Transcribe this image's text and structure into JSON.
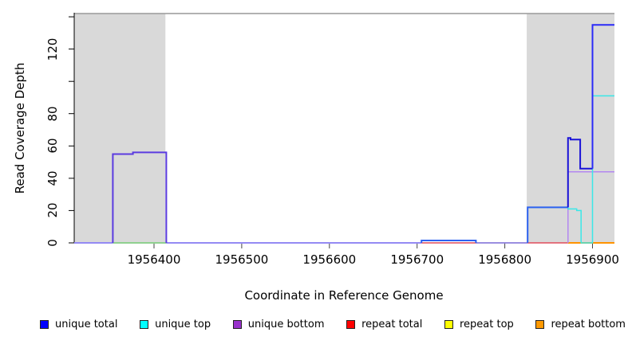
{
  "chart_data": {
    "type": "line",
    "subtype": "step-coverage",
    "title": "",
    "xlabel": "Coordinate in Reference Genome",
    "ylabel": "Read Coverage Depth",
    "x_domain": [
      1956309,
      1956925
    ],
    "y_domain": [
      0,
      142
    ],
    "grid": false,
    "x_ticks": [
      {
        "v": 1956400,
        "label": "1956400"
      },
      {
        "v": 1956500,
        "label": "1956500"
      },
      {
        "v": 1956600,
        "label": "1956600"
      },
      {
        "v": 1956700,
        "label": "1956700"
      },
      {
        "v": 1956800,
        "label": "1956800"
      },
      {
        "v": 1956900,
        "label": "1956900"
      }
    ],
    "y_ticks": [
      {
        "v": 0,
        "label": "0"
      },
      {
        "v": 20,
        "label": "20"
      },
      {
        "v": 40,
        "label": "40"
      },
      {
        "v": 60,
        "label": "60"
      },
      {
        "v": 80,
        "label": "80"
      },
      {
        "v": 100,
        "label": ""
      },
      {
        "v": 120,
        "label": "120"
      },
      {
        "v": 140,
        "label": ""
      }
    ],
    "shade_color": "#d9d9d9",
    "border_color": "#999999",
    "axis_color": "#000000",
    "shaded_regions": [
      {
        "x0": 1956309,
        "x1": 1956413
      },
      {
        "x0": 1956825,
        "x1": 1956925
      }
    ],
    "series": [
      {
        "name": "baseline-unique-zero",
        "color": "#948af4",
        "width": 2,
        "points": [
          [
            1956309,
            0
          ],
          [
            1956705,
            0
          ]
        ]
      },
      {
        "name": "baseline-green-under-left-block",
        "color": "#8fd08f",
        "width": 2,
        "points": [
          [
            1956353,
            0
          ],
          [
            1956414,
            0
          ]
        ]
      },
      {
        "name": "baseline-repeat-total-zero",
        "color": "#e04b5a",
        "width": 1.5,
        "points": [
          [
            1956705,
            0
          ],
          [
            1956872,
            0
          ]
        ]
      },
      {
        "name": "baseline-unique-zero-2",
        "color": "#7f86f2",
        "width": 1.5,
        "points": [
          [
            1956767,
            0
          ],
          [
            1956826,
            0
          ]
        ]
      },
      {
        "name": "baseline-repeat-bottom-zero",
        "color": "#ff9300",
        "width": 2,
        "points": [
          [
            1956872,
            0
          ],
          [
            1956925,
            0
          ]
        ]
      },
      {
        "name": "unique-bottom-right",
        "color": "#b387f0",
        "width": 1.5,
        "points": [
          [
            1956872,
            0
          ],
          [
            1956872,
            44
          ],
          [
            1956925,
            44
          ]
        ]
      },
      {
        "name": "unique-top-right",
        "color": "#3ae8e8",
        "width": 1.5,
        "points": [
          [
            1956826,
            22
          ],
          [
            1956872,
            22
          ],
          [
            1956872,
            21
          ],
          [
            1956882,
            21
          ],
          [
            1956882,
            20
          ],
          [
            1956887,
            20
          ],
          [
            1956887,
            0
          ],
          [
            1956900,
            0
          ],
          [
            1956900,
            91
          ],
          [
            1956925,
            91
          ]
        ]
      },
      {
        "name": "unique-total-left-block",
        "color": "#5b3be0",
        "width": 2,
        "points": [
          [
            1956353,
            0
          ],
          [
            1956353,
            55
          ],
          [
            1956376,
            55
          ],
          [
            1956376,
            56
          ],
          [
            1956414,
            56
          ],
          [
            1956414,
            0
          ]
        ]
      },
      {
        "name": "unique-total-mid-bump",
        "color": "#2d62f0",
        "width": 2,
        "points": [
          [
            1956705,
            0
          ],
          [
            1956705,
            1.5
          ],
          [
            1956767,
            1.5
          ],
          [
            1956767,
            0
          ]
        ]
      },
      {
        "name": "unique-total-step-22",
        "color": "#2d62f0",
        "width": 2,
        "points": [
          [
            1956826,
            0
          ],
          [
            1956826,
            22
          ],
          [
            1956872,
            22
          ]
        ]
      },
      {
        "name": "unique-total-peak-64",
        "color": "#1a13d8",
        "width": 2,
        "points": [
          [
            1956872,
            22
          ],
          [
            1956872,
            65
          ],
          [
            1956875,
            65
          ],
          [
            1956875,
            64
          ],
          [
            1956886,
            64
          ],
          [
            1956886,
            46
          ],
          [
            1956900,
            46
          ]
        ]
      },
      {
        "name": "unique-total-peak-135",
        "color": "#2a2af8",
        "width": 2,
        "points": [
          [
            1956900,
            46
          ],
          [
            1956900,
            135
          ],
          [
            1956925,
            135
          ]
        ]
      }
    ],
    "legend": [
      {
        "label": "unique total",
        "color": "#0000ff"
      },
      {
        "label": "unique top",
        "color": "#00ffff"
      },
      {
        "label": "unique bottom",
        "color": "#9932cc"
      },
      {
        "label": "repeat total",
        "color": "#ff0000"
      },
      {
        "label": "repeat top",
        "color": "#ffff00"
      },
      {
        "label": "repeat bottom",
        "color": "#ff9900"
      }
    ],
    "legend_position": "bottom"
  }
}
